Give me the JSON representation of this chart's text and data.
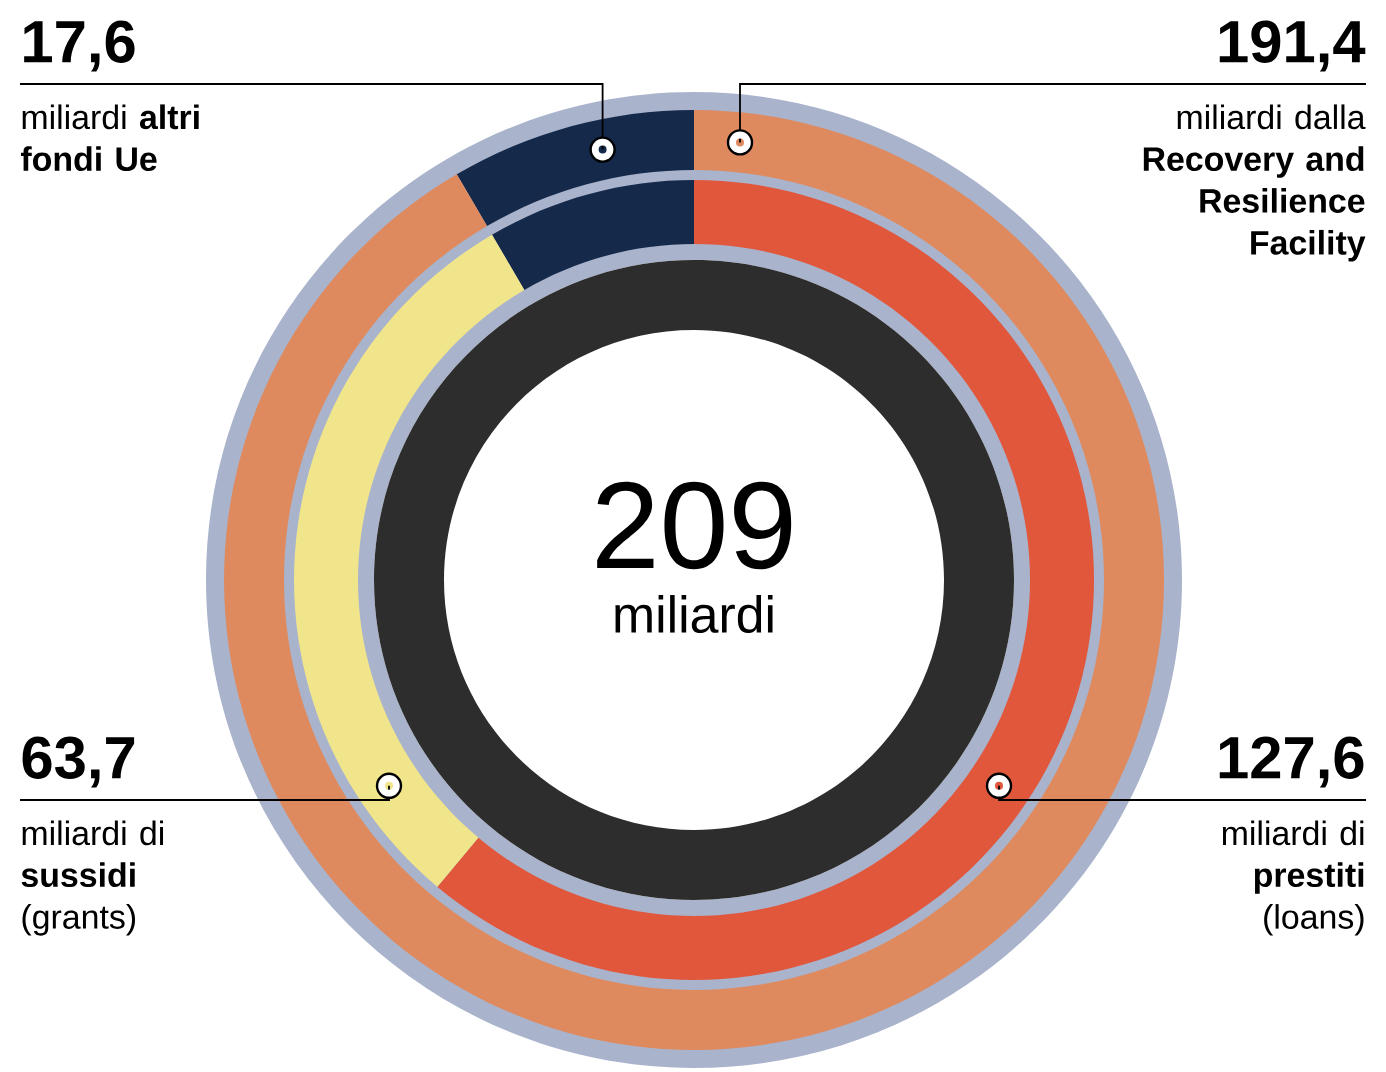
{
  "chart_data": [
    {
      "type": "donut",
      "categories": [
        "miliardi **altri fondi Ue**",
        "miliardi dalla **Recovery and Resilience Facility**"
      ],
      "values": [
        17.6,
        191.4
      ],
      "value_labels": [
        "17,6",
        "191,4"
      ],
      "colors": [
        "#15294a",
        "#df8a5e"
      ],
      "annotations": [
        "209",
        "miliardi"
      ]
    },
    {
      "type": "donut",
      "categories": [
        null,
        "miliardi di **sussidi** (grants)",
        "miliardi di **prestiti** (loans)"
      ],
      "values": [
        17.6,
        63.7,
        127.6
      ],
      "value_labels": [
        null,
        "63,7",
        "127,6"
      ],
      "colors": [
        "#15294a",
        "#f1e58c",
        "#e0573c"
      ]
    }
  ]
}
